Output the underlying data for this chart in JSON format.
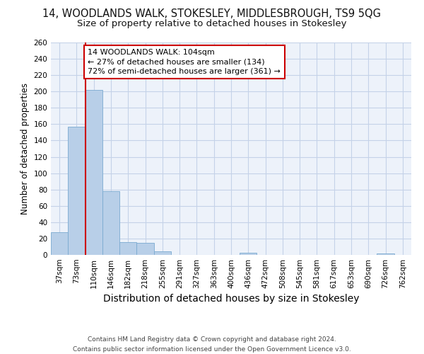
{
  "title": "14, WOODLANDS WALK, STOKESLEY, MIDDLESBROUGH, TS9 5QG",
  "subtitle": "Size of property relative to detached houses in Stokesley",
  "xlabel": "Distribution of detached houses by size in Stokesley",
  "ylabel": "Number of detached properties",
  "bar_labels": [
    "37sqm",
    "73sqm",
    "110sqm",
    "146sqm",
    "182sqm",
    "218sqm",
    "255sqm",
    "291sqm",
    "327sqm",
    "363sqm",
    "400sqm",
    "436sqm",
    "472sqm",
    "508sqm",
    "545sqm",
    "581sqm",
    "617sqm",
    "653sqm",
    "690sqm",
    "726sqm",
    "762sqm"
  ],
  "bar_values": [
    28,
    157,
    202,
    78,
    16,
    15,
    4,
    0,
    0,
    0,
    0,
    3,
    0,
    0,
    0,
    0,
    0,
    0,
    0,
    2,
    0
  ],
  "bar_color": "#b8cfe8",
  "bar_edge_color": "#7aaad0",
  "property_line_color": "#cc0000",
  "annotation_line1": "14 WOODLANDS WALK: 104sqm",
  "annotation_line2": "← 27% of detached houses are smaller (134)",
  "annotation_line3": "72% of semi-detached houses are larger (361) →",
  "annotation_box_color": "#cc0000",
  "ylim": [
    0,
    260
  ],
  "yticks": [
    0,
    20,
    40,
    60,
    80,
    100,
    120,
    140,
    160,
    180,
    200,
    220,
    240,
    260
  ],
  "footer": "Contains HM Land Registry data © Crown copyright and database right 2024.\nContains public sector information licensed under the Open Government Licence v3.0.",
  "bg_color": "#edf2fa",
  "grid_color": "#c5d2e8",
  "title_fontsize": 10.5,
  "subtitle_fontsize": 9.5,
  "xlabel_fontsize": 10,
  "ylabel_fontsize": 8.5,
  "tick_fontsize": 7.5,
  "footer_fontsize": 6.5,
  "annotation_fontsize": 8
}
